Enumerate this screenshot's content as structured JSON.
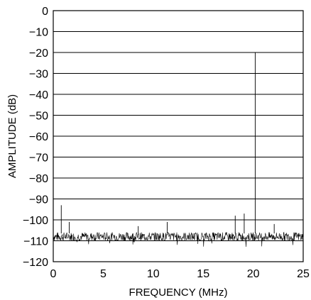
{
  "chart_data": {
    "type": "line",
    "title": "",
    "xlabel": "FREQUENCY (MHz)",
    "ylabel": "AMPLITUDE (dB)",
    "xlim": [
      0,
      25
    ],
    "ylim": [
      -120,
      0
    ],
    "x_ticks": [
      0,
      5,
      10,
      15,
      20,
      25
    ],
    "x_tick_labels": [
      "0",
      "5",
      "10",
      "15",
      "20",
      "25"
    ],
    "y_ticks": [
      0,
      -10,
      -20,
      -30,
      -40,
      -50,
      -60,
      -70,
      -80,
      -90,
      -100,
      -110,
      -120
    ],
    "y_tick_labels": [
      "0",
      "−10",
      "−20",
      "−30",
      "−40",
      "−50",
      "−60",
      "−70",
      "−80",
      "−90",
      "−100",
      "−110",
      "−120"
    ],
    "grid": "horizontal",
    "noise_floor_db": -108,
    "series": [
      {
        "x": [
          0.8,
          1.6,
          8.5,
          11.4,
          18.2,
          19.1,
          20.2,
          22.1
        ],
        "y": [
          -93,
          -101,
          -103,
          -101,
          -98,
          -97,
          -20,
          -102
        ]
      }
    ]
  }
}
